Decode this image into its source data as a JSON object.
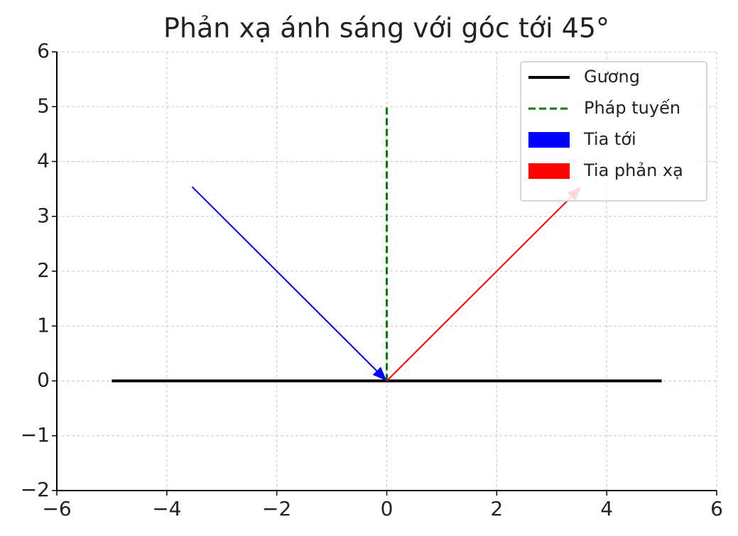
{
  "chart_data": {
    "type": "line",
    "title": "Phản xạ ánh sáng với góc tới 45°",
    "xlim": [
      -6,
      6
    ],
    "ylim": [
      -2,
      6
    ],
    "xticks": [
      {
        "value": -6,
        "label": "−6"
      },
      {
        "value": -4,
        "label": "−4"
      },
      {
        "value": -2,
        "label": "−2"
      },
      0,
      2,
      4,
      6
    ],
    "yticks": [
      {
        "value": -2,
        "label": "−2"
      },
      {
        "value": -1,
        "label": "−1"
      },
      0,
      1,
      2,
      3,
      4,
      5,
      6
    ],
    "grid": true,
    "legend": "upper right",
    "series": [
      {
        "name": "Gương",
        "color": "#000000",
        "style": "solid",
        "x": [
          -5,
          5
        ],
        "values": [
          0,
          0
        ]
      },
      {
        "name": "Pháp tuyến",
        "color": "#008000",
        "style": "dashed",
        "x": [
          0,
          0
        ],
        "values": [
          0,
          5
        ]
      },
      {
        "name": "Tia tới",
        "color": "#0000ff",
        "style": "arrow",
        "x": [
          -3.54,
          0
        ],
        "values": [
          3.54,
          0
        ]
      },
      {
        "name": "Tia phản xạ",
        "color": "#ff0000",
        "style": "arrow",
        "x": [
          0,
          3.54
        ],
        "values": [
          0,
          3.54
        ]
      }
    ]
  }
}
